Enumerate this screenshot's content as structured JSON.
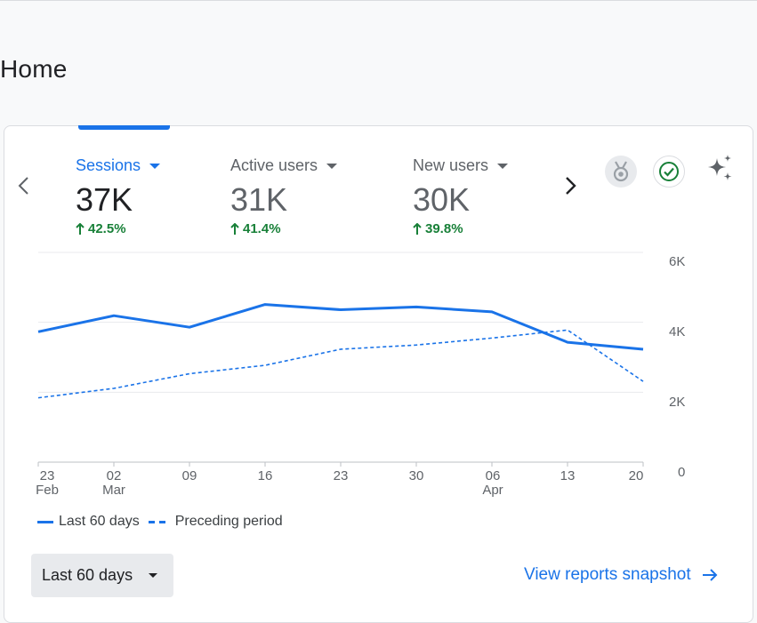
{
  "page": {
    "title": "Home"
  },
  "metrics": [
    {
      "label": "Sessions",
      "value": "37K",
      "change": "42.5%"
    },
    {
      "label": "Active users",
      "value": "31K",
      "change": "41.4%"
    },
    {
      "label": "New users",
      "value": "30K",
      "change": "39.8%"
    }
  ],
  "icons": {
    "insights": "award-ribbon-icon",
    "status": "check-circle-icon",
    "ai": "sparkle-icon",
    "prev": "chevron-left-icon",
    "next": "chevron-right-icon"
  },
  "colors": {
    "accent": "#1a73e8",
    "positive": "#188038",
    "status": "#188038"
  },
  "chart_data": {
    "type": "line",
    "x": [
      "23 Feb",
      "02 Mar",
      "09",
      "16",
      "23",
      "30",
      "06 Apr",
      "13",
      "20"
    ],
    "x_tick_labels": [
      {
        "line1": "23",
        "line2": "Feb"
      },
      {
        "line1": "02",
        "line2": "Mar"
      },
      {
        "line1": "09",
        "line2": ""
      },
      {
        "line1": "16",
        "line2": ""
      },
      {
        "line1": "23",
        "line2": ""
      },
      {
        "line1": "30",
        "line2": ""
      },
      {
        "line1": "06",
        "line2": "Apr"
      },
      {
        "line1": "13",
        "line2": ""
      },
      {
        "line1": "20",
        "line2": ""
      }
    ],
    "y_ticks": [
      "6K",
      "4K",
      "2K",
      "0"
    ],
    "y_tick_values": [
      6000,
      4000,
      2000,
      0
    ],
    "ylim": [
      0,
      6000
    ],
    "grid": true,
    "series": [
      {
        "name": "Last 60 days",
        "style": "solid",
        "values": [
          3730,
          4190,
          3860,
          4510,
          4360,
          4440,
          4300,
          3430,
          3230
        ]
      },
      {
        "name": "Preceding period",
        "style": "dashed",
        "values": [
          1840,
          2110,
          2530,
          2770,
          3230,
          3350,
          3550,
          3780,
          2310
        ]
      }
    ]
  },
  "legend": {
    "current": "Last 60 days",
    "previous": "Preceding period"
  },
  "footer": {
    "range_label": "Last 60 days",
    "view_link": "View reports snapshot"
  }
}
